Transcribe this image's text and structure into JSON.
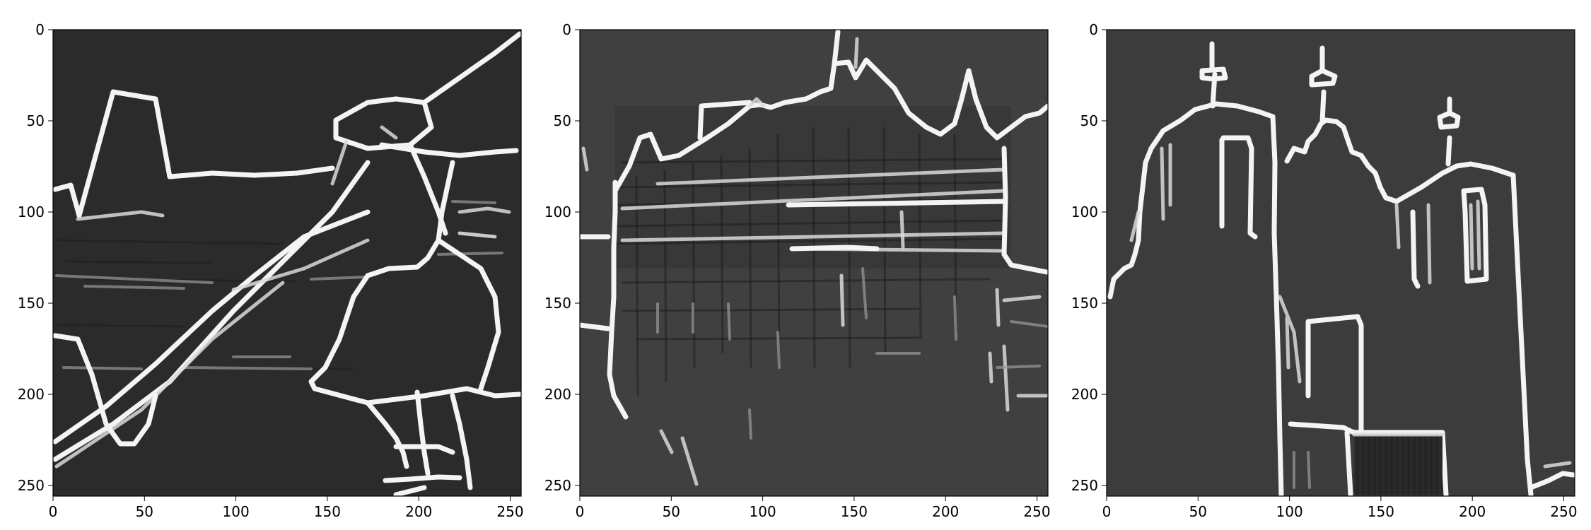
{
  "figure": {
    "panels": [
      {
        "id": "panel-1",
        "background": "#2b2b2b"
      },
      {
        "id": "panel-2",
        "background": "#404040"
      },
      {
        "id": "panel-3",
        "background": "#3c3c3c"
      }
    ],
    "axes": {
      "x_ticks": [
        "0",
        "50",
        "100",
        "150",
        "200",
        "250"
      ],
      "y_ticks": [
        "0",
        "50",
        "100",
        "150",
        "200",
        "250"
      ],
      "x_range": [
        0,
        256
      ],
      "y_range": [
        0,
        256
      ],
      "y_inverted": true
    }
  }
}
